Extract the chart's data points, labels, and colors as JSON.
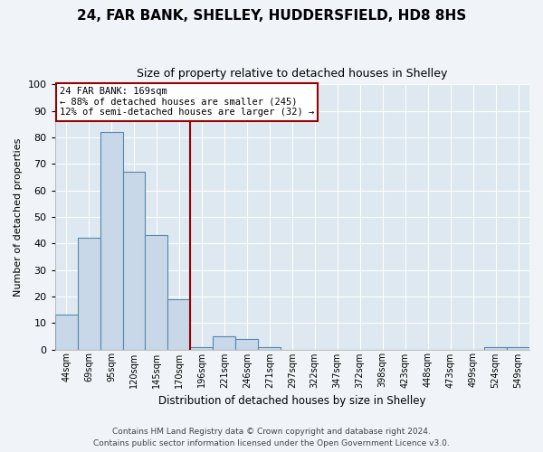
{
  "title1": "24, FAR BANK, SHELLEY, HUDDERSFIELD, HD8 8HS",
  "title2": "Size of property relative to detached houses in Shelley",
  "xlabel": "Distribution of detached houses by size in Shelley",
  "ylabel": "Number of detached properties",
  "bar_labels": [
    "44sqm",
    "69sqm",
    "95sqm",
    "120sqm",
    "145sqm",
    "170sqm",
    "196sqm",
    "221sqm",
    "246sqm",
    "271sqm",
    "297sqm",
    "322sqm",
    "347sqm",
    "372sqm",
    "398sqm",
    "423sqm",
    "448sqm",
    "473sqm",
    "499sqm",
    "524sqm",
    "549sqm"
  ],
  "bar_values": [
    13,
    42,
    82,
    67,
    43,
    19,
    1,
    5,
    4,
    1,
    0,
    0,
    0,
    0,
    0,
    0,
    0,
    0,
    0,
    1,
    1
  ],
  "bar_color": "#c8d8e8",
  "bar_edge_color": "#5588aa",
  "vline_x_index": 5,
  "vline_color": "#990000",
  "annotation_line1": "24 FAR BANK: 169sqm",
  "annotation_line2": "← 88% of detached houses are smaller (245)",
  "annotation_line3": "12% of semi-detached houses are larger (32) →",
  "annotation_box_edge_color": "#990000",
  "ylim": [
    0,
    100
  ],
  "yticks": [
    0,
    10,
    20,
    30,
    40,
    50,
    60,
    70,
    80,
    90,
    100
  ],
  "fig_bg_color": "#f0f4f8",
  "plot_bg_color": "#dde8f0",
  "grid_color": "#ffffff",
  "footer1": "Contains HM Land Registry data © Crown copyright and database right 2024.",
  "footer2": "Contains public sector information licensed under the Open Government Licence v3.0."
}
